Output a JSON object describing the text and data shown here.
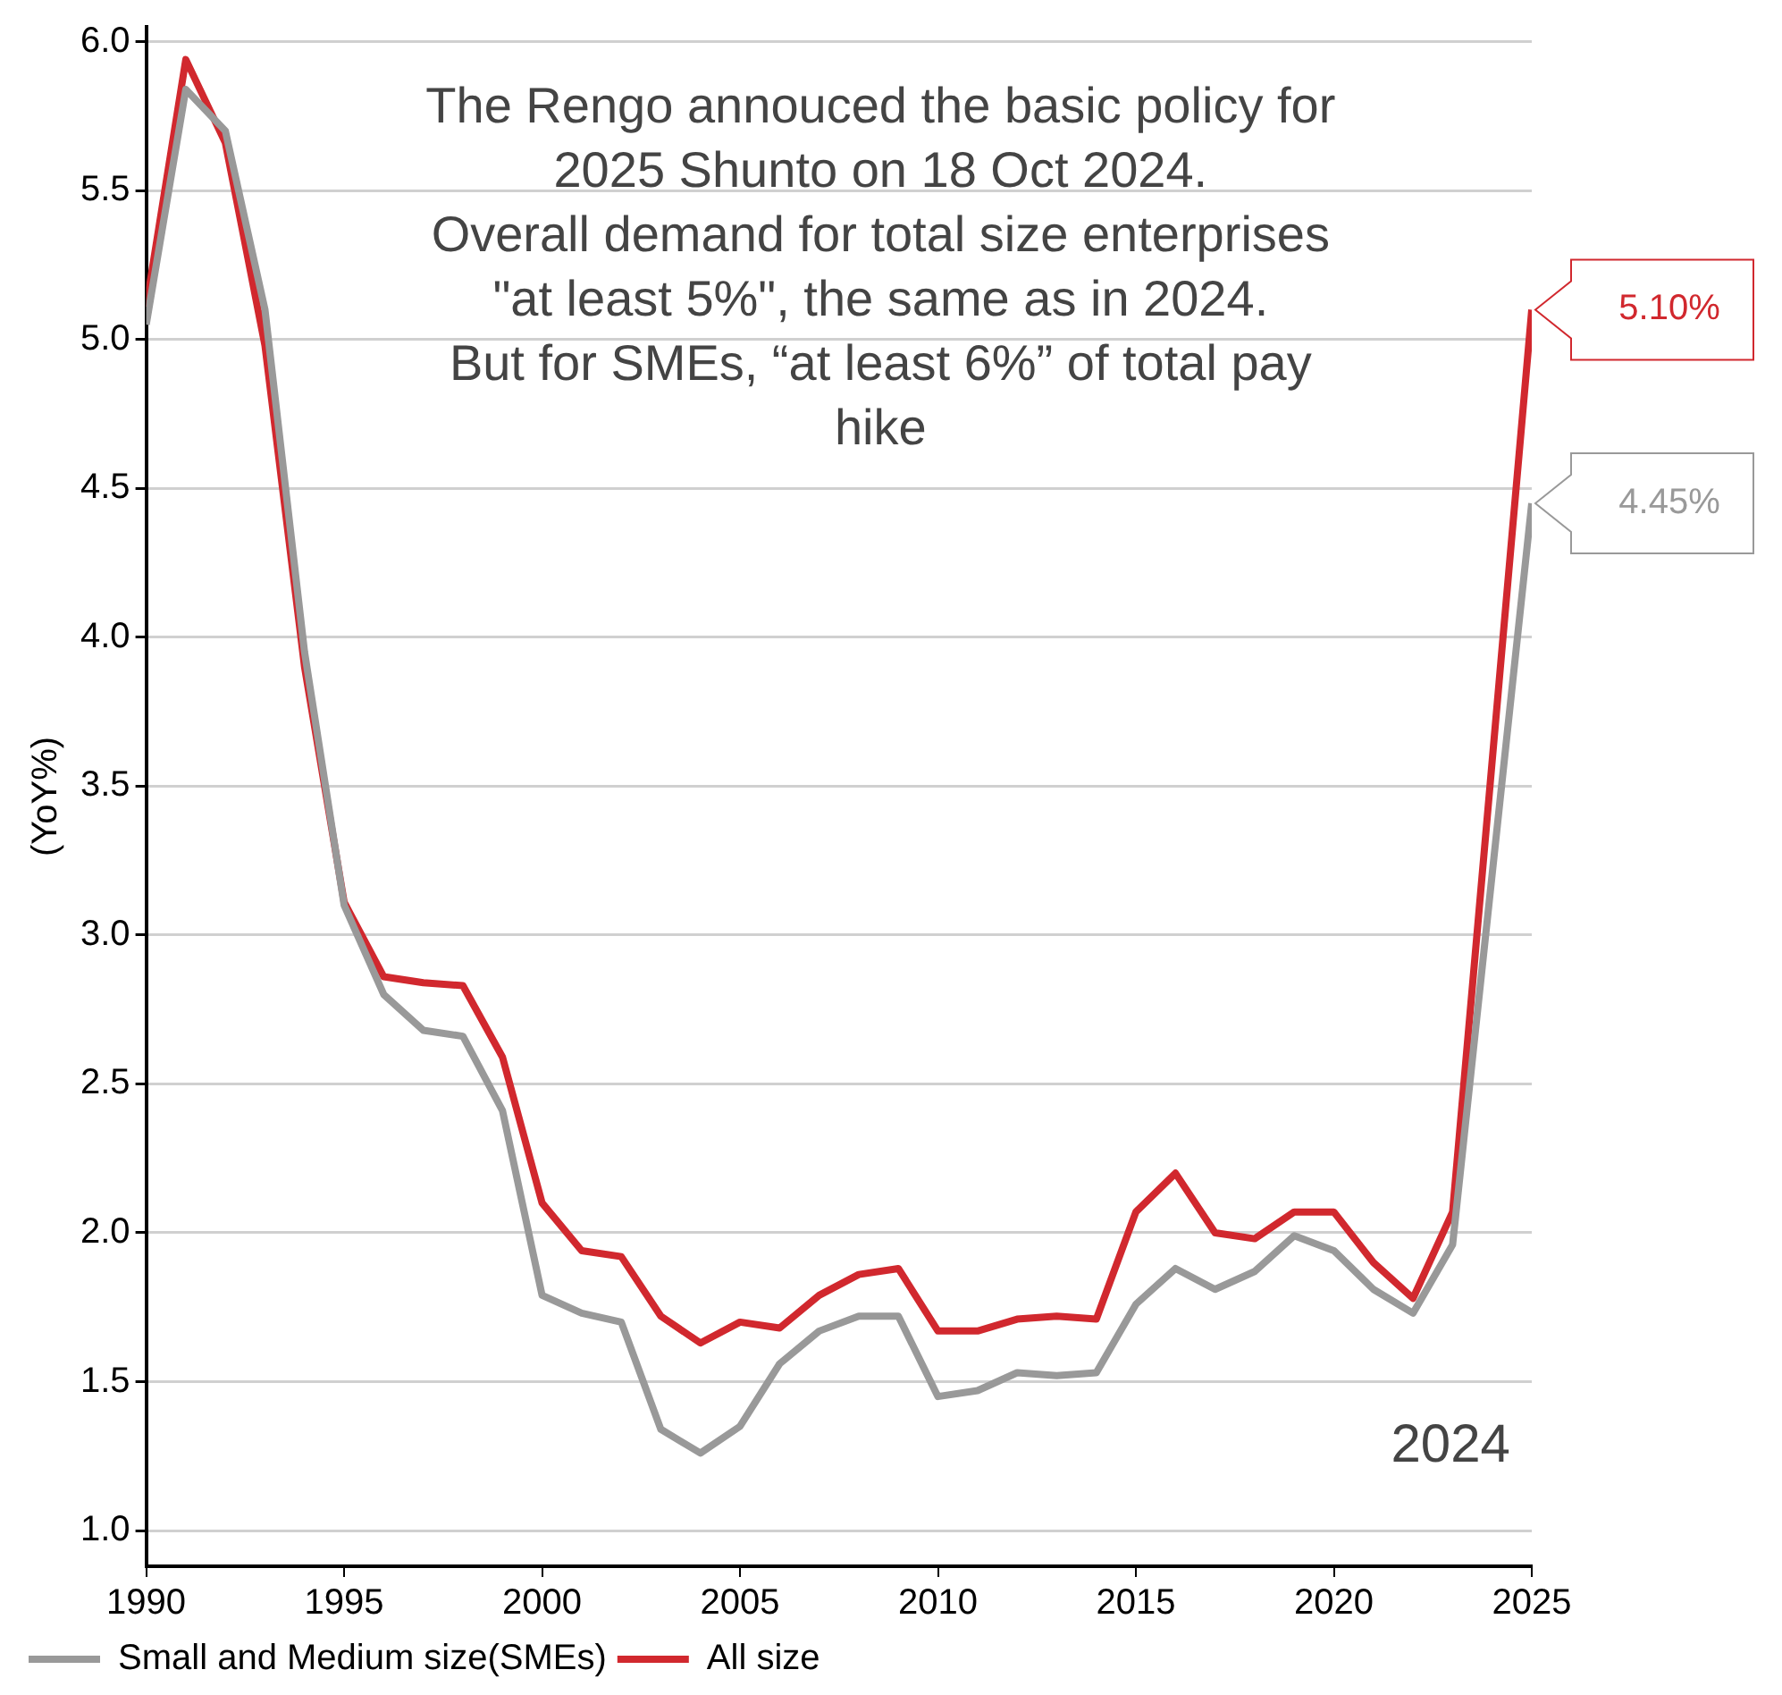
{
  "chart_data": {
    "type": "line",
    "ylabel": "(YoY%)",
    "annotations": [
      "The Rengo annouced the basic policy for\n2025 Shunto on 18 Oct 2024.\nOverall demand for total size enterprises\n\"at least 5%\", the same as in 2024.\nBut for SMEs, “at least 6%” of total pay\nhike",
      "2024",
      {
        "text": "5.10%",
        "x": 2025,
        "y": 5.1
      },
      {
        "text": "4.45%",
        "x": 2025,
        "y": 4.45
      }
    ],
    "x": [
      1990,
      1991,
      1992,
      1993,
      1994,
      1995,
      1996,
      1997,
      1998,
      1999,
      2000,
      2001,
      2002,
      2003,
      2004,
      2005,
      2006,
      2007,
      2008,
      2009,
      2010,
      2011,
      2012,
      2013,
      2014,
      2015,
      2016,
      2017,
      2018,
      2019,
      2020,
      2021,
      2022,
      2023,
      2025
    ],
    "series": [
      {
        "name": "Small and Medium size(SMEs)",
        "color": "#999999",
        "values": [
          5.05,
          5.84,
          5.7,
          5.1,
          3.95,
          3.1,
          2.8,
          2.68,
          2.66,
          2.41,
          1.79,
          1.73,
          1.7,
          1.34,
          1.26,
          1.35,
          1.56,
          1.67,
          1.72,
          1.72,
          1.45,
          1.47,
          1.53,
          1.52,
          1.53,
          1.76,
          1.88,
          1.81,
          1.87,
          1.99,
          1.94,
          1.81,
          1.73,
          1.96,
          4.45
        ]
      },
      {
        "name": "All size",
        "color": "#d1282e",
        "values": [
          5.11,
          5.94,
          5.66,
          4.98,
          3.9,
          3.11,
          2.86,
          2.84,
          2.83,
          2.59,
          2.1,
          1.94,
          1.92,
          1.72,
          1.63,
          1.7,
          1.68,
          1.79,
          1.86,
          1.88,
          1.67,
          1.67,
          1.71,
          1.72,
          1.71,
          2.07,
          2.2,
          2.0,
          1.98,
          2.07,
          2.07,
          1.9,
          1.78,
          2.07,
          5.1
        ]
      }
    ],
    "xlim": [
      1990,
      2025
    ],
    "xticks": [
      1990,
      1995,
      2000,
      2005,
      2010,
      2015,
      2020,
      2025
    ],
    "ylim": [
      0.88,
      6.05
    ],
    "yticks": [
      {
        "value": 1,
        "label": "1.0"
      },
      1.5,
      {
        "value": 2,
        "label": "2.0"
      },
      2.5,
      {
        "value": 3,
        "label": "3.0"
      },
      3.5,
      {
        "value": 4,
        "label": "4.0"
      },
      4.5,
      {
        "value": 5,
        "label": "5.0"
      },
      5.5,
      {
        "value": 6,
        "label": "6.0"
      }
    ],
    "grid": "y",
    "legend": "bottom left",
    "marker": "none",
    "line_style": "solid"
  }
}
